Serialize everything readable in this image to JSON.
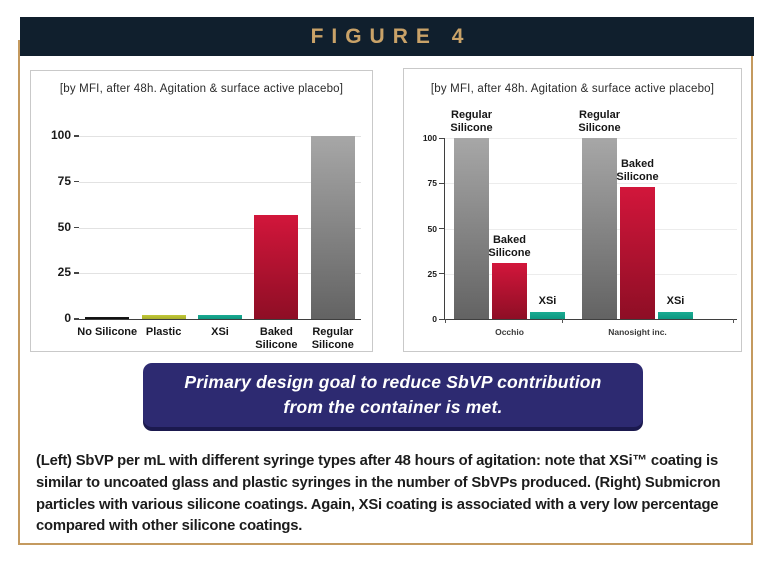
{
  "header": {
    "title": "FIGURE 4"
  },
  "palette": {
    "black": [
      "#1a1a1a",
      "#0d0d0d"
    ],
    "olive": [
      "#c1c838",
      "#a9af2b"
    ],
    "teal": [
      "#1aab92",
      "#0e9780"
    ],
    "crimson": [
      "#d2163b",
      "#8e0e25"
    ],
    "gray": [
      "#a7a7a7",
      "#636363"
    ],
    "navy_banner": "#101f2d",
    "gold_text": "#c9a268",
    "tan_border": "#c49a5f",
    "callout_bg": "#2d2a71"
  },
  "chart_data": [
    {
      "type": "bar",
      "title": "[by MFI, after 48h. Agitation & surface active placebo]",
      "categories": [
        "No Silicone",
        "Plastic",
        "XSi",
        "Baked Silicone",
        "Regular Silicone"
      ],
      "values": [
        1,
        2,
        2,
        57,
        100
      ],
      "bar_colors": [
        "black",
        "olive",
        "teal",
        "crimson",
        "gray"
      ],
      "xlabel": "",
      "ylabel": "",
      "ylim": [
        0,
        100
      ],
      "yticks": [
        0,
        25,
        50,
        75,
        100
      ],
      "grid": true,
      "legend": "none"
    },
    {
      "type": "bar",
      "title": "[by MFI, after 48h. Agitation & surface active placebo]",
      "categories": [
        "Occhio",
        "Nanosight inc."
      ],
      "series": [
        {
          "name": "Regular Silicone",
          "values": [
            100,
            100
          ],
          "color": "gray"
        },
        {
          "name": "Baked Silicone",
          "values": [
            31,
            73
          ],
          "color": "crimson"
        },
        {
          "name": "XSi",
          "values": [
            4,
            4
          ],
          "color": "teal"
        }
      ],
      "xlabel": "",
      "ylabel": "",
      "ylim": [
        0,
        100
      ],
      "yticks": [
        0,
        25,
        50,
        75,
        100
      ],
      "grid": true,
      "legend": "labels-above-bars"
    }
  ],
  "callout": {
    "line1": "Primary design goal to reduce SbVP contribution",
    "line2": "from the container is met."
  },
  "caption": {
    "text": "(Left) SbVP per mL with different syringe types after 48 hours of agitation: note that XSi™ coating is similar to uncoated glass and plastic syringes in the number of SbVPs produced. (Right) Submicron particles with various silicone coatings. Again, XSi coating is associated with a very low percentage compared with other silicone coatings."
  }
}
